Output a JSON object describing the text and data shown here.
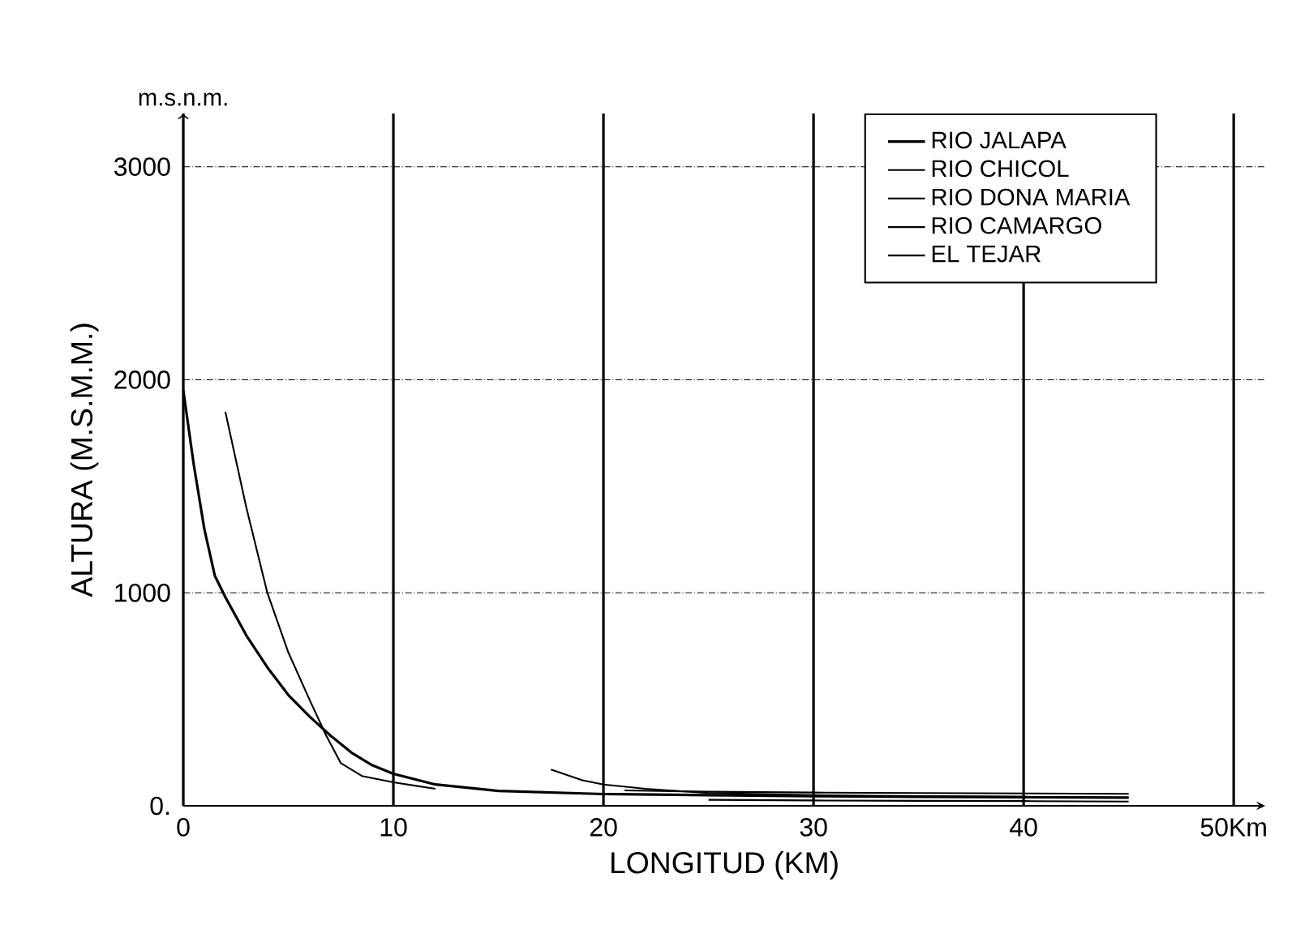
{
  "chart_data": {
    "type": "line",
    "xlabel": "LONGITUD (KM)",
    "ylabel": "ALTURA (M.S.M.M.)",
    "annotations": [
      "m.s.n.m."
    ],
    "xlim": [
      0,
      51.5
    ],
    "ylim": [
      0,
      3250
    ],
    "xticks": [
      0,
      10,
      20,
      30,
      40,
      {
        "value": 50,
        "label": "50Km"
      }
    ],
    "yticks": [
      {
        "value": 0,
        "label": "0."
      },
      1000,
      2000,
      3000
    ],
    "grid": true,
    "legend": "top right",
    "line_style": "solid",
    "marker": "none",
    "series": [
      {
        "name": "RIO JALAPA",
        "color": "#000000",
        "x": [
          0,
          0.5,
          1,
          1.5,
          2,
          3,
          4,
          5,
          6,
          7,
          8,
          9,
          10,
          12,
          15,
          20,
          25,
          30,
          35,
          40,
          45
        ],
        "values": [
          1950,
          1600,
          1300,
          1080,
          980,
          800,
          650,
          520,
          420,
          330,
          250,
          190,
          150,
          100,
          70,
          55,
          50,
          45,
          42,
          40,
          38
        ]
      },
      {
        "name": "RIO CHICOL",
        "color": "#000000",
        "x": [
          2,
          3,
          4,
          5,
          6,
          6.8,
          7.5,
          8.5,
          10,
          12
        ],
        "values": [
          1850,
          1400,
          1000,
          720,
          500,
          330,
          200,
          140,
          110,
          80
        ]
      },
      {
        "name": "RIO DONA MARIA",
        "color": "#000000",
        "x": [
          17.5,
          19,
          20,
          22,
          25,
          30,
          35,
          40,
          45
        ],
        "values": [
          170,
          120,
          100,
          80,
          60,
          50,
          45,
          42,
          40
        ]
      },
      {
        "name": "RIO CAMARGO",
        "color": "#000000",
        "x": [
          21,
          25,
          30,
          35,
          40,
          45
        ],
        "values": [
          72,
          66,
          62,
          60,
          58,
          56
        ]
      },
      {
        "name": "EL TEJAR",
        "color": "#000000",
        "x": [
          25,
          30,
          35,
          40,
          45
        ],
        "values": [
          28,
          25,
          23,
          22,
          20
        ]
      }
    ]
  }
}
